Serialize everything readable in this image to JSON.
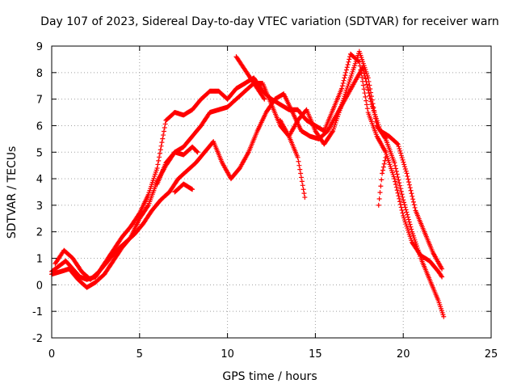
{
  "chart_data": {
    "type": "scatter",
    "title": "Day 107 of 2023, Sidereal Day-to-day VTEC variation (SDTVAR) for receiver warn",
    "xlabel": "GPS time / hours",
    "ylabel": "SDTVAR / TECUs",
    "xlim": [
      0,
      25
    ],
    "ylim": [
      -2,
      9
    ],
    "x_ticks": [
      "0",
      "5",
      "10",
      "15",
      "20",
      "25"
    ],
    "y_ticks": [
      "-2",
      "-1",
      "0",
      "1",
      "2",
      "3",
      "4",
      "5",
      "6",
      "7",
      "8",
      "9"
    ],
    "grid": true,
    "marker": "plus",
    "series_color": "#ff0000",
    "series": [
      {
        "x": [
          0.0,
          0.4,
          0.8,
          1.2,
          1.6,
          2.0,
          2.5,
          3.0,
          3.5,
          4.0,
          4.5,
          5.0,
          5.5,
          6.0,
          6.5,
          7.0,
          7.5,
          8.0,
          8.5,
          9.0,
          9.5,
          10.0,
          10.5,
          11.0,
          11.5,
          12.0,
          12.5,
          13.0,
          13.5,
          14.0,
          14.5,
          15.0,
          15.5,
          16.0,
          16.5,
          17.0,
          17.5,
          18.0,
          18.5,
          19.0,
          19.5,
          20.0,
          20.5,
          21.0,
          21.5,
          22.0,
          22.2
        ],
        "y": [
          0.5,
          0.7,
          0.9,
          0.6,
          0.3,
          0.2,
          0.3,
          0.8,
          1.3,
          1.8,
          2.2,
          2.7,
          3.4,
          4.4,
          6.2,
          6.5,
          6.4,
          6.6,
          7.0,
          7.3,
          7.3,
          7.0,
          7.4,
          7.6,
          7.8,
          7.3,
          7.0,
          6.8,
          6.6,
          6.6,
          6.2,
          6.0,
          5.8,
          6.6,
          7.4,
          8.7,
          8.4,
          6.5,
          5.6,
          5.0,
          4.0,
          2.6,
          1.6,
          1.1,
          0.9,
          0.5,
          0.3
        ]
      },
      {
        "x": [
          0.0,
          0.5,
          1.0,
          1.5,
          2.0,
          2.5,
          3.0,
          3.5,
          4.0,
          4.5,
          5.0,
          5.5,
          6.0,
          6.5,
          7.0,
          7.5,
          8.0,
          8.5,
          9.0,
          9.5,
          10.0,
          10.5,
          11.0,
          11.5,
          12.0,
          12.5,
          13.0,
          13.5,
          14.0,
          14.5,
          15.0,
          15.5,
          16.0,
          16.5,
          17.0,
          17.5,
          18.0,
          18.5,
          19.0,
          19.5,
          20.0,
          20.5,
          21.0,
          21.5,
          22.0,
          22.3
        ],
        "y": [
          0.4,
          0.5,
          0.6,
          0.2,
          -0.1,
          0.1,
          0.4,
          0.9,
          1.4,
          1.8,
          2.5,
          3.0,
          3.9,
          4.5,
          5.0,
          5.2,
          5.6,
          6.0,
          6.5,
          6.6,
          6.7,
          7.0,
          7.3,
          7.6,
          7.6,
          6.8,
          6.0,
          5.6,
          6.2,
          6.6,
          5.8,
          5.3,
          5.8,
          6.8,
          7.8,
          8.8,
          7.8,
          6.0,
          5.5,
          4.6,
          3.2,
          2.0,
          1.0,
          0.2,
          -0.6,
          -1.2
        ]
      },
      {
        "x": [
          0.2,
          0.7,
          1.2,
          1.7,
          2.2,
          2.7,
          3.2,
          3.7,
          4.2,
          4.7,
          5.2,
          5.7,
          6.2,
          6.7,
          7.2,
          7.7,
          8.2,
          8.7,
          9.2,
          9.7,
          10.2,
          10.7,
          11.2,
          11.7,
          12.2,
          12.7,
          13.2,
          13.7,
          14.2,
          14.7,
          15.2,
          15.7,
          16.2,
          16.7,
          17.2,
          17.7,
          18.2,
          18.7,
          19.2,
          19.7,
          20.2,
          20.7,
          21.2,
          21.7,
          22.2
        ],
        "y": [
          0.8,
          1.3,
          1.0,
          0.5,
          0.2,
          0.5,
          0.9,
          1.3,
          1.6,
          1.9,
          2.3,
          2.8,
          3.2,
          3.5,
          4.0,
          4.3,
          4.6,
          5.0,
          5.4,
          4.6,
          4.0,
          4.4,
          5.0,
          5.8,
          6.5,
          7.0,
          7.2,
          6.5,
          5.8,
          5.6,
          5.5,
          5.8,
          6.4,
          7.0,
          7.6,
          8.2,
          6.8,
          5.8,
          5.6,
          5.3,
          4.2,
          2.8,
          2.0,
          1.2,
          0.6
        ]
      },
      {
        "x": [
          6.0,
          6.5,
          7.0,
          7.5,
          8.0,
          8.3
        ],
        "y": [
          3.8,
          4.6,
          5.0,
          4.9,
          5.2,
          5.0
        ]
      },
      {
        "x": [
          7.0,
          7.5,
          8.0
        ],
        "y": [
          3.5,
          3.8,
          3.6
        ]
      },
      {
        "x": [
          10.5,
          10.9,
          11.3,
          11.7,
          12.1
        ],
        "y": [
          8.6,
          8.2,
          7.8,
          7.4,
          7.0
        ]
      },
      {
        "x": [
          13.0,
          13.5,
          14.0,
          14.4
        ],
        "y": [
          6.2,
          5.6,
          4.8,
          3.3
        ]
      },
      {
        "x": [
          18.6,
          18.8,
          19.0
        ],
        "y": [
          3.0,
          4.2,
          4.8
        ]
      }
    ]
  }
}
